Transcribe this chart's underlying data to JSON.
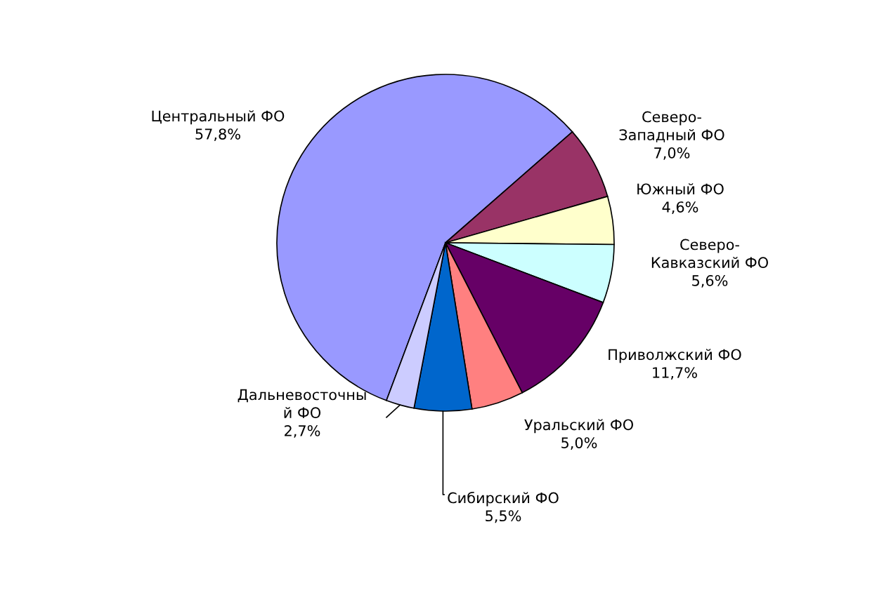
{
  "chart_data": {
    "type": "pie",
    "categories": [
      "Центральный ФО",
      "Северо-\nЗападный ФО",
      "Южный ФО",
      "Северо-\nКавказский ФО",
      "Приволжский ФО",
      "Уральский ФО",
      "Сибирский ФО",
      "Дальневосточны\nй ФО"
    ],
    "values": [
      57.8,
      7.0,
      4.6,
      5.6,
      11.7,
      5.0,
      5.5,
      2.7
    ],
    "value_labels": [
      "57,8%",
      "7,0%",
      "4,6%",
      "5,6%",
      "11,7%",
      "5,0%",
      "5,5%",
      "2,7%"
    ],
    "colors": [
      "#9999ff",
      "#993366",
      "#ffffcc",
      "#ccffff",
      "#660066",
      "#ff8080",
      "#0066cc",
      "#ccccff"
    ]
  }
}
